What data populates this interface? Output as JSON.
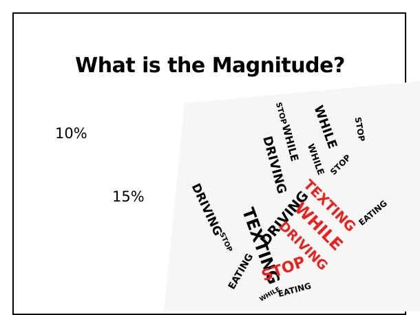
{
  "slide": {
    "title": "What is the Magnitude?",
    "items": [
      "10%",
      "15%"
    ],
    "image": {
      "words": [
        {
          "text": "DRIVING",
          "color": "#000000"
        },
        {
          "text": "STOP",
          "color": "#000000"
        },
        {
          "text": "EATING",
          "color": "#000000"
        },
        {
          "text": "TEXTING",
          "color": "#000000"
        },
        {
          "text": "DRIVING",
          "color": "#000000"
        },
        {
          "text": "WHILE",
          "color": "#000000"
        },
        {
          "text": "STOP",
          "color": "#000000"
        },
        {
          "text": "WHILE",
          "color": "#000000"
        },
        {
          "text": "WHILE",
          "color": "#000000"
        },
        {
          "text": "STOP",
          "color": "#000000"
        },
        {
          "text": "STOP",
          "color": "#000000"
        },
        {
          "text": "EATING",
          "color": "#000000"
        },
        {
          "text": "DRIVING",
          "color": "#000000"
        },
        {
          "text": "TEXTING",
          "color": "#e8231f"
        },
        {
          "text": "WHILE",
          "color": "#e8231f"
        },
        {
          "text": "DRIVING",
          "color": "#e8231f"
        },
        {
          "text": "STOP",
          "color": "#e8231f"
        },
        {
          "text": "EATING",
          "color": "#000000"
        },
        {
          "text": "WHILE",
          "color": "#000000"
        }
      ]
    }
  }
}
